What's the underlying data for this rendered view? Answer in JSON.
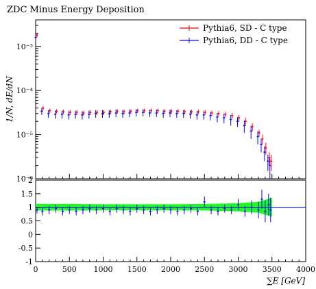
{
  "chart_data": [
    {
      "type": "scatter",
      "title": "ZDC Minus Energy Deposition",
      "ylabel": "1/N, dE/dN",
      "yscale": "log",
      "ylim": [
        1e-06,
        0.004
      ],
      "xlim": [
        0,
        4000
      ],
      "y_ticks": [
        {
          "value": 1e-06,
          "label": "10⁻⁶"
        },
        {
          "value": 1e-05,
          "label": "10⁻⁵"
        },
        {
          "value": 0.0001,
          "label": "10⁻⁴"
        },
        {
          "value": 0.001,
          "label": "10⁻³"
        }
      ],
      "legend_position": "top-right",
      "series": [
        {
          "name": "Pythia6, SD - C type",
          "color": "#ff0000",
          "x": [
            10,
            100,
            200,
            300,
            400,
            500,
            600,
            700,
            800,
            900,
            1000,
            1100,
            1200,
            1300,
            1400,
            1500,
            1600,
            1700,
            1800,
            1900,
            2000,
            2100,
            2200,
            2300,
            2400,
            2500,
            2600,
            2700,
            2800,
            2900,
            3000,
            3100,
            3200,
            3300,
            3350,
            3400,
            3450,
            3480
          ],
          "y": [
            0.0018,
            4e-05,
            3.5e-05,
            3.4e-05,
            3.3e-05,
            3.2e-05,
            3.2e-05,
            3.1e-05,
            3.2e-05,
            3.2e-05,
            3.2e-05,
            3.3e-05,
            3.4e-05,
            3.3e-05,
            3.4e-05,
            3.5e-05,
            3.5e-05,
            3.5e-05,
            3.5e-05,
            3.4e-05,
            3.4e-05,
            3.4e-05,
            3.3e-05,
            3.3e-05,
            3.3e-05,
            3.2e-05,
            3.1e-05,
            3e-05,
            2.9e-05,
            2.7e-05,
            2.4e-05,
            2e-05,
            1.5e-05,
            1.1e-05,
            8e-06,
            5e-06,
            3e-06,
            2.5e-06
          ],
          "yerr": [
            0.0002,
            5e-06,
            4e-06,
            4e-06,
            4e-06,
            4e-06,
            4e-06,
            4e-06,
            4e-06,
            4e-06,
            4e-06,
            4e-06,
            4e-06,
            4e-06,
            4e-06,
            4e-06,
            4e-06,
            4e-06,
            4e-06,
            4e-06,
            4e-06,
            4e-06,
            4e-06,
            4e-06,
            4e-06,
            4e-06,
            4e-06,
            4e-06,
            4e-06,
            4e-06,
            4e-06,
            4e-06,
            3e-06,
            2e-06,
            2e-06,
            1.5e-06,
            1e-06,
            1e-06
          ]
        },
        {
          "name": "Pythia6, DD - C type",
          "color": "#0000ff",
          "x": [
            10,
            100,
            200,
            300,
            400,
            500,
            600,
            700,
            800,
            900,
            1000,
            1100,
            1200,
            1300,
            1400,
            1500,
            1600,
            1700,
            1800,
            1900,
            2000,
            2100,
            2200,
            2300,
            2400,
            2500,
            2600,
            2700,
            2800,
            2900,
            3000,
            3100,
            3200,
            3300,
            3350,
            3400,
            3450,
            3480
          ],
          "y": [
            0.0016,
            3.4e-05,
            3e-05,
            2.9e-05,
            2.9e-05,
            2.8e-05,
            2.9e-05,
            2.8e-05,
            2.9e-05,
            3e-05,
            3e-05,
            3e-05,
            3.1e-05,
            3e-05,
            3.1e-05,
            3.2e-05,
            3.2e-05,
            3.1e-05,
            3.1e-05,
            3e-05,
            3.1e-05,
            3e-05,
            3e-05,
            2.9e-05,
            2.8e-05,
            2.8e-05,
            2.7e-05,
            2.5e-05,
            2.4e-05,
            2.2e-05,
            2e-05,
            1.6e-05,
            1.2e-05,
            9e-06,
            6e-06,
            4e-06,
            2.5e-06,
            2e-06
          ],
          "yerr": [
            0.0002,
            6e-06,
            6e-06,
            6e-06,
            6e-06,
            6e-06,
            6e-06,
            6e-06,
            6e-06,
            6e-06,
            6e-06,
            6e-06,
            6e-06,
            6e-06,
            6e-06,
            6e-06,
            6e-06,
            6e-06,
            6e-06,
            6e-06,
            6e-06,
            6e-06,
            6e-06,
            6e-06,
            6e-06,
            6e-06,
            6e-06,
            6e-06,
            6e-06,
            6e-06,
            5e-06,
            5e-06,
            4e-06,
            3e-06,
            2e-06,
            1.5e-06,
            1e-06,
            1e-06
          ]
        }
      ]
    },
    {
      "type": "scatter",
      "xlabel": "∑E [GeV]",
      "xlim": [
        0,
        4000
      ],
      "ylim": [
        -1,
        2
      ],
      "x_ticks": [
        {
          "value": 0,
          "label": "0"
        },
        {
          "value": 500,
          "label": "500"
        },
        {
          "value": 1000,
          "label": "1000"
        },
        {
          "value": 1500,
          "label": "1500"
        },
        {
          "value": 2000,
          "label": "2000"
        },
        {
          "value": 2500,
          "label": "2500"
        },
        {
          "value": 3000,
          "label": "3000"
        },
        {
          "value": 3500,
          "label": "3500"
        },
        {
          "value": 4000,
          "label": "4000"
        }
      ],
      "y_ticks": [
        {
          "value": -1,
          "label": "-1"
        },
        {
          "value": -0.5,
          "label": "-0.5"
        },
        {
          "value": 0,
          "label": "0"
        },
        {
          "value": 0.5,
          "label": "0.5"
        },
        {
          "value": 1,
          "label": "1"
        },
        {
          "value": 1.5,
          "label": "1.5"
        },
        {
          "value": 2,
          "label": "2"
        }
      ],
      "reference_line": 1,
      "band": {
        "color": "#00ff00",
        "x": [
          0,
          500,
          1000,
          1500,
          2000,
          2500,
          3000,
          3300,
          3500
        ],
        "low": [
          0.88,
          0.88,
          0.89,
          0.89,
          0.89,
          0.88,
          0.85,
          0.8,
          0.65
        ],
        "high": [
          1.12,
          1.12,
          1.11,
          1.11,
          1.11,
          1.12,
          1.15,
          1.2,
          1.35
        ]
      },
      "series": [
        {
          "color": "#0000ff",
          "x": [
            20,
            100,
            200,
            300,
            400,
            500,
            600,
            700,
            800,
            900,
            1000,
            1100,
            1200,
            1300,
            1400,
            1500,
            1600,
            1700,
            1800,
            1900,
            2000,
            2100,
            2200,
            2300,
            2400,
            2500,
            2600,
            2700,
            2800,
            2900,
            3000,
            3100,
            3200,
            3300,
            3350,
            3400,
            3450,
            3480
          ],
          "y": [
            0.9,
            0.85,
            0.9,
            0.95,
            0.85,
            0.9,
            0.85,
            0.9,
            0.95,
            0.9,
            0.95,
            0.85,
            0.95,
            0.9,
            0.85,
            0.95,
            0.9,
            0.85,
            0.9,
            0.95,
            0.9,
            0.85,
            0.9,
            0.95,
            0.85,
            1.2,
            0.9,
            0.85,
            0.95,
            0.9,
            1.1,
            0.85,
            1.0,
            0.9,
            1.3,
            0.85,
            1.1,
            0.9
          ],
          "yerr": [
            0.12,
            0.15,
            0.15,
            0.15,
            0.15,
            0.15,
            0.15,
            0.15,
            0.15,
            0.15,
            0.15,
            0.15,
            0.15,
            0.15,
            0.15,
            0.15,
            0.15,
            0.15,
            0.15,
            0.15,
            0.15,
            0.15,
            0.15,
            0.15,
            0.15,
            0.2,
            0.15,
            0.15,
            0.15,
            0.15,
            0.2,
            0.2,
            0.25,
            0.3,
            0.35,
            0.4,
            0.4,
            0.45
          ]
        }
      ]
    }
  ]
}
